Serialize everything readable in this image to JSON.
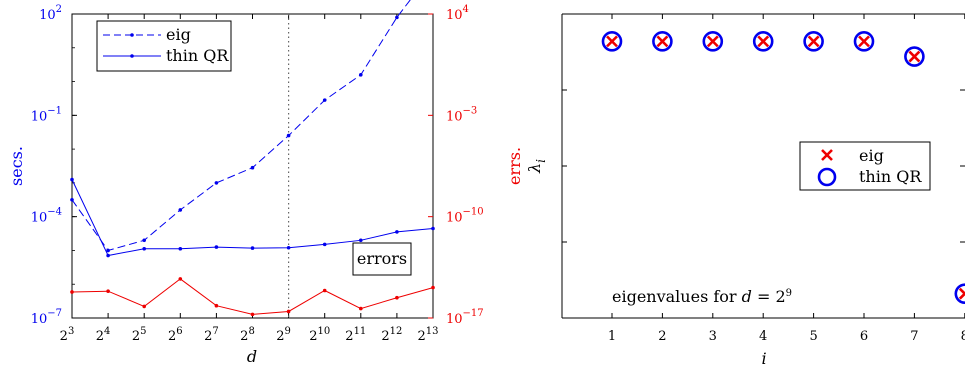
{
  "chart_data": [
    {
      "type": "line",
      "xlabel": "d",
      "ylabel_left": "secs.",
      "ylabel_right": "errs.",
      "x_exponents": [
        3,
        4,
        5,
        6,
        7,
        8,
        9,
        10,
        11,
        12,
        13
      ],
      "x_tick_base": "2",
      "y_left_ticks": [
        {
          "base": "10",
          "exp": "2",
          "value_log10": 2
        },
        {
          "base": "10",
          "exp": "−1",
          "value_log10": -1
        },
        {
          "base": "10",
          "exp": "−4",
          "value_log10": -4
        },
        {
          "base": "10",
          "exp": "−7",
          "value_log10": -7
        }
      ],
      "y_right_ticks": [
        {
          "base": "10",
          "exp": "4",
          "value_log10": 4
        },
        {
          "base": "10",
          "exp": "−3",
          "value_log10": -3
        },
        {
          "base": "10",
          "exp": "−10",
          "value_log10": -10
        },
        {
          "base": "10",
          "exp": "−17",
          "value_log10": -17
        }
      ],
      "ylim_left_log10": [
        -7,
        2
      ],
      "ylim_right_log10": [
        -17,
        4
      ],
      "vline_exponent": 9,
      "legend": {
        "position": "top-left",
        "entries": [
          "eig",
          "thin QR"
        ]
      },
      "annotation": "errors",
      "colors": {
        "times": "#0000ee",
        "errors": "#ee0000",
        "axes": "#000000"
      },
      "series": [
        {
          "name": "eig",
          "axis": "left",
          "style": "dashed",
          "log10_values": [
            -3.5,
            -5.0,
            -4.7,
            -3.8,
            -3.0,
            -2.55,
            -1.6,
            -0.55,
            0.2,
            1.9,
            3.3
          ]
        },
        {
          "name": "thin QR",
          "axis": "left",
          "style": "solid",
          "log10_values": [
            -2.9,
            -5.15,
            -4.95,
            -4.95,
            -4.9,
            -4.93,
            -4.92,
            -4.82,
            -4.7,
            -4.45,
            -4.35
          ]
        },
        {
          "name": "errors",
          "axis": "right",
          "style": "solid",
          "log10_values": [
            -15.2,
            -15.15,
            -16.2,
            -14.3,
            -16.15,
            -16.75,
            -16.55,
            -15.1,
            -16.35,
            -15.6,
            -14.9
          ]
        }
      ]
    },
    {
      "type": "scatter",
      "xlabel": "i",
      "ylabel": "λ",
      "ylabel_sub": "i",
      "x_ticks": [
        1,
        2,
        3,
        4,
        5,
        6,
        7,
        8
      ],
      "x_tick_labels": [
        "1",
        "2",
        "3",
        "4",
        "5",
        "6",
        "7",
        "8"
      ],
      "xlim": [
        0,
        8
      ],
      "ylim": [
        0,
        1
      ],
      "legend": {
        "position": "center-right",
        "entries": [
          "eig",
          "thin QR"
        ]
      },
      "annotation_prefix": "eigenvalues for ",
      "annotation_var": "d",
      "annotation_eq": " = 2",
      "annotation_exp": "9",
      "colors": {
        "eig": "#ee0000",
        "thin QR": "#0000ee"
      },
      "series": [
        {
          "name": "eig",
          "marker": "x",
          "x": [
            1,
            2,
            3,
            4,
            5,
            6,
            7,
            8
          ],
          "y": [
            0.91,
            0.91,
            0.91,
            0.91,
            0.91,
            0.91,
            0.86,
            0.08
          ]
        },
        {
          "name": "thin QR",
          "marker": "o",
          "x": [
            1,
            2,
            3,
            4,
            5,
            6,
            7,
            8
          ],
          "y": [
            0.91,
            0.91,
            0.91,
            0.91,
            0.91,
            0.91,
            0.86,
            0.08
          ]
        }
      ]
    }
  ]
}
